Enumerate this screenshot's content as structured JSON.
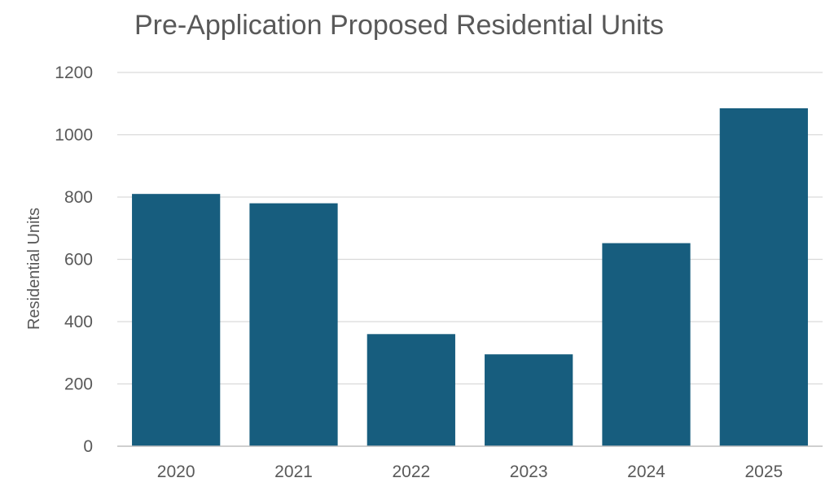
{
  "chart_data": {
    "type": "bar",
    "title": "Pre-Application Proposed Residential Units",
    "xlabel": "",
    "ylabel": "Residential Units",
    "categories": [
      "2020",
      "2021",
      "2022",
      "2023",
      "2024",
      "2025"
    ],
    "values": [
      810,
      780,
      360,
      295,
      652,
      1085
    ],
    "ylim": [
      0,
      1200
    ],
    "yticks": [
      0,
      200,
      400,
      600,
      800,
      1000,
      1200
    ],
    "grid": true,
    "legend": "none",
    "colors": {
      "bar": "#175D7E",
      "text": "#595959",
      "grid": "#D9D9D9"
    }
  }
}
